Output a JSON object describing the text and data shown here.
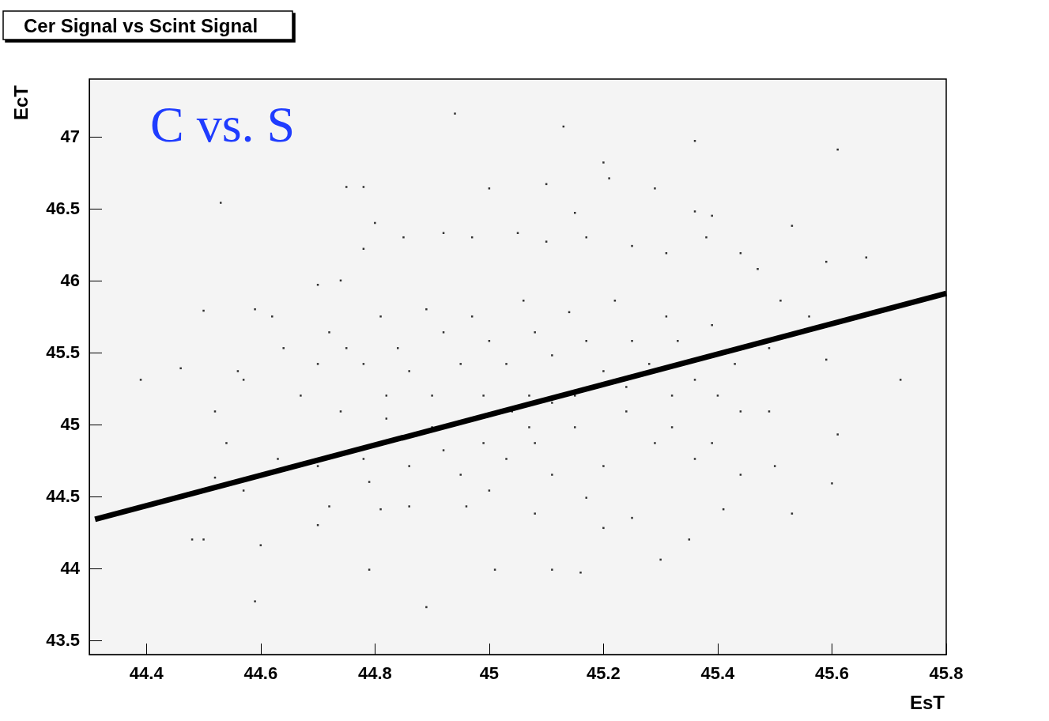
{
  "chart_data": {
    "type": "scatter",
    "title": "Cer Signal vs Scint Signal",
    "xlabel": "EsT",
    "ylabel": "EcT",
    "annotations": [
      "C vs. S"
    ],
    "xlim": [
      44.3,
      45.8
    ],
    "xticks": [
      44.4,
      44.6,
      44.8,
      45,
      45.2,
      45.4,
      45.6,
      45.8
    ],
    "ylim": [
      43.4,
      47.4
    ],
    "yticks": [
      43.5,
      44,
      44.5,
      45,
      45.5,
      46,
      46.5,
      47
    ],
    "grid": false,
    "series": [
      {
        "marker": "square",
        "color": "#000000",
        "x": [
          44.94,
          45.13,
          45.36,
          45.61,
          44.53,
          44.75,
          44.78,
          45.0,
          45.2,
          45.21,
          45.29,
          45.1,
          45.15,
          45.36,
          45.39,
          45.53,
          44.8,
          44.5,
          44.39,
          44.59,
          44.89,
          44.48,
          44.5,
          44.6,
          44.79,
          45.11,
          45.16,
          45.3,
          45.01,
          45.53,
          45.6,
          45.61,
          45.72,
          45.66,
          45.59,
          45.56,
          45.59,
          45.41,
          45.35,
          45.25,
          45.2,
          45.08,
          44.96,
          44.86,
          44.81,
          44.72,
          44.7,
          44.57,
          44.52,
          44.46,
          44.56,
          44.62,
          44.59,
          44.7,
          44.74,
          44.78,
          44.85,
          44.92,
          44.97,
          45.05,
          45.1,
          45.17,
          45.25,
          45.31,
          45.38,
          45.44,
          45.47,
          45.51,
          45.49,
          45.49,
          45.5,
          45.44,
          45.36,
          45.29,
          45.2,
          45.11,
          45.03,
          44.95,
          44.86,
          44.78,
          44.7,
          44.63,
          44.54,
          44.52,
          44.57,
          44.64,
          44.72,
          44.81,
          44.89,
          44.97,
          45.06,
          45.14,
          45.22,
          45.31,
          45.39,
          45.43,
          45.44,
          45.39,
          45.32,
          45.24,
          45.15,
          45.07,
          44.99,
          44.9,
          44.82,
          44.74,
          44.67,
          44.7,
          44.78,
          44.86,
          44.95,
          45.03,
          45.11,
          45.2,
          45.28,
          45.36,
          45.33,
          45.25,
          45.17,
          45.08,
          45.0,
          44.92,
          44.84,
          44.75,
          44.82,
          44.9,
          44.99,
          45.07,
          45.15,
          45.24,
          45.32,
          45.4,
          45.04,
          45.11,
          45.0,
          45.17,
          45.08,
          44.92,
          44.79
        ],
        "values": [
          47.16,
          47.07,
          46.97,
          46.91,
          46.54,
          46.65,
          46.65,
          46.64,
          46.82,
          46.71,
          46.64,
          46.67,
          46.47,
          46.48,
          46.45,
          46.38,
          46.4,
          45.79,
          45.31,
          43.77,
          43.73,
          44.2,
          44.2,
          44.16,
          43.99,
          43.99,
          43.97,
          44.06,
          43.99,
          44.38,
          44.59,
          44.93,
          45.31,
          46.16,
          46.13,
          45.75,
          45.45,
          44.41,
          44.2,
          44.35,
          44.28,
          44.38,
          44.43,
          44.43,
          44.41,
          44.43,
          44.3,
          44.54,
          44.63,
          45.39,
          45.37,
          45.75,
          45.8,
          45.97,
          46.0,
          46.22,
          46.3,
          46.33,
          46.3,
          46.33,
          46.27,
          46.3,
          46.24,
          46.19,
          46.3,
          46.19,
          46.08,
          45.86,
          45.53,
          45.09,
          44.71,
          44.65,
          44.76,
          44.87,
          44.71,
          44.65,
          44.76,
          44.65,
          44.71,
          44.76,
          44.71,
          44.76,
          44.87,
          45.09,
          45.31,
          45.53,
          45.64,
          45.75,
          45.8,
          45.75,
          45.86,
          45.78,
          45.86,
          45.75,
          45.69,
          45.42,
          45.09,
          44.87,
          44.98,
          45.09,
          44.98,
          44.98,
          44.87,
          44.98,
          45.04,
          45.09,
          45.2,
          45.42,
          45.42,
          45.37,
          45.42,
          45.42,
          45.48,
          45.37,
          45.42,
          45.31,
          45.58,
          45.58,
          45.58,
          45.64,
          45.58,
          45.64,
          45.53,
          45.53,
          45.2,
          45.2,
          45.2,
          45.2,
          45.2,
          45.26,
          45.2,
          45.2,
          45.09,
          45.15,
          44.54,
          44.49,
          44.87,
          44.82,
          44.6
        ]
      },
      {
        "type": "line",
        "marker": "none",
        "color": "#000000",
        "x": [
          44.31,
          45.8
        ],
        "values": [
          44.34,
          45.91
        ]
      }
    ]
  }
}
